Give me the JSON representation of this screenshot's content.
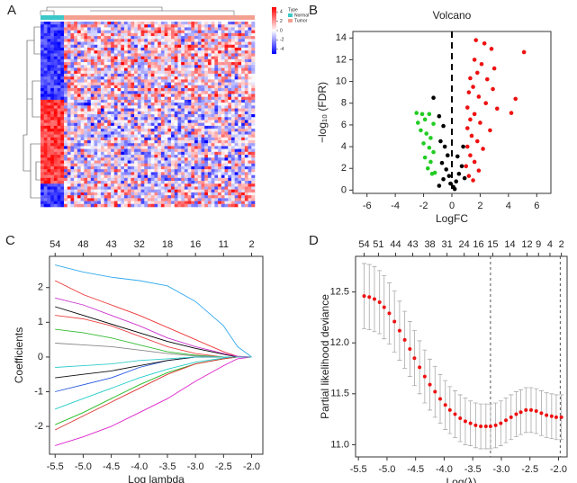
{
  "panel_labels": [
    "A",
    "B",
    "C",
    "D"
  ],
  "chart_data": [
    {
      "type": "heatmap",
      "legend_title": "Type",
      "groups": [
        {
          "name": "Normal",
          "color": "#3cc8c8"
        },
        {
          "name": "Tumor",
          "color": "#f2a090"
        }
      ],
      "colors": [
        "#0000ff",
        "#ffffff",
        "#ff0000"
      ],
      "clim": [
        -5,
        5
      ],
      "colorbar_ticks": [
        4,
        2,
        0,
        -2,
        -4
      ]
    },
    {
      "type": "scatter",
      "title": "Volcano",
      "x_label": "LogFC",
      "y_label": "−log₁₀ (FDR)",
      "xlim": [
        -7,
        7
      ],
      "ylim": [
        -0.3,
        14.6
      ],
      "xticks": [
        -6,
        -4,
        -2,
        0,
        2,
        4,
        6
      ],
      "yticks": [
        0,
        2,
        4,
        6,
        8,
        10,
        12,
        14
      ],
      "vline": 0,
      "series": [
        {
          "color": "#22cc22",
          "x": [
            -2.5,
            -2.1,
            -1.6,
            -2.4,
            -1.9,
            -1.3,
            -2.2,
            -1.8,
            -1.5,
            -2.0,
            -1.6,
            -1.3,
            -1.9,
            -1.5,
            -1.7,
            -1.2,
            -1.4
          ],
          "values": [
            7.1,
            7.0,
            7.0,
            6.2,
            6.5,
            6.1,
            5.5,
            5.2,
            4.8,
            4.3,
            3.9,
            3.5,
            3.0,
            2.6,
            2.0,
            1.6,
            1.5
          ]
        },
        {
          "color": "#000000",
          "x": [
            -1.3,
            -0.9,
            -0.6,
            -0.8,
            -0.5,
            -0.3,
            -0.7,
            -0.4,
            -0.2,
            -0.6,
            -0.1,
            0.1,
            0.3,
            0.5,
            0.7,
            0.4,
            0.8,
            -0.9,
            0.2,
            0.9
          ],
          "values": [
            8.5,
            6.8,
            5.9,
            4.5,
            4.0,
            3.2,
            2.5,
            1.9,
            1.3,
            1.0,
            0.6,
            0.3,
            0.8,
            1.5,
            2.2,
            3.1,
            4.0,
            0.4,
            0.1,
            1.1
          ]
        },
        {
          "color": "#ee1111",
          "x": [
            1.7,
            2.3,
            2.8,
            5.1,
            1.6,
            2.1,
            3.0,
            1.8,
            1.3,
            2.5,
            1.5,
            2.9,
            1.2,
            1.9,
            4.5,
            2.4,
            1.1,
            3.2,
            1.6,
            4.2,
            1.3,
            2.0,
            1.1,
            2.7,
            1.4,
            1.8,
            1.1,
            2.2,
            1.3,
            1.6,
            1.0,
            1.9,
            1.2,
            1.5
          ],
          "values": [
            13.8,
            13.5,
            13.0,
            12.7,
            12.0,
            11.6,
            11.2,
            10.8,
            10.3,
            10.2,
            9.5,
            9.3,
            9.0,
            8.6,
            8.4,
            8.0,
            7.6,
            7.5,
            7.0,
            7.1,
            6.5,
            6.2,
            5.7,
            5.5,
            5.0,
            4.5,
            4.0,
            3.8,
            3.2,
            2.6,
            2.2,
            1.8,
            1.3,
            0.9
          ]
        }
      ]
    },
    {
      "type": "line",
      "x_label": "Log lambda",
      "y_label": "Coefficients",
      "xlim": [
        -5.6,
        -1.8
      ],
      "ylim": [
        -2.8,
        2.9
      ],
      "xticks": [
        -5.5,
        {
          "value": -5,
          "label": "-5.0"
        },
        -4.5,
        {
          "value": -4,
          "label": "-4.0"
        },
        -3.5,
        {
          "value": -3,
          "label": "-3.0"
        },
        -2.5,
        {
          "value": -2,
          "label": "-2.0"
        }
      ],
      "yticks": [
        -2,
        -1,
        0,
        1,
        2
      ],
      "top_ticks": [
        {
          "value": -5.5,
          "label": "54"
        },
        {
          "value": -5,
          "label": "48"
        },
        {
          "value": -4.5,
          "label": "43"
        },
        {
          "value": -4,
          "label": "32"
        },
        {
          "value": -3.5,
          "label": "18"
        },
        {
          "value": -3,
          "label": "16"
        },
        {
          "value": -2.5,
          "label": "11"
        },
        {
          "value": -2,
          "label": "2"
        }
      ],
      "x": [
        -5.5,
        -5.0,
        -4.5,
        -4.0,
        -3.5,
        -3.0,
        -2.5,
        -2.25,
        -2.0
      ],
      "series": [
        {
          "color": "#33aaee",
          "values": [
            2.65,
            2.45,
            2.3,
            2.2,
            2.05,
            1.6,
            0.9,
            0.3,
            0
          ]
        },
        {
          "color": "#dd22cc",
          "values": [
            -2.55,
            -2.3,
            -2.0,
            -1.6,
            -1.2,
            -0.7,
            -0.25,
            -0.05,
            0
          ]
        },
        {
          "color": "#ee3333",
          "values": [
            2.2,
            1.8,
            1.5,
            1.2,
            0.85,
            0.5,
            0.15,
            0.02,
            0
          ]
        },
        {
          "color": "#000000",
          "values": [
            1.45,
            1.2,
            0.95,
            0.7,
            0.45,
            0.25,
            0.08,
            0,
            0
          ]
        },
        {
          "color": "#22bb22",
          "values": [
            -1.95,
            -1.6,
            -1.2,
            -0.8,
            -0.45,
            -0.2,
            -0.05,
            0,
            0
          ]
        },
        {
          "color": "#22cccc",
          "values": [
            -1.5,
            -1.2,
            -0.9,
            -0.6,
            -0.35,
            -0.15,
            -0.03,
            0,
            0
          ]
        },
        {
          "color": "#ee4444",
          "values": [
            1.2,
            1.1,
            0.9,
            0.6,
            0.3,
            0.1,
            0,
            0,
            0
          ]
        },
        {
          "color": "#2255dd",
          "values": [
            -1.0,
            -0.8,
            -0.6,
            -0.3,
            -0.1,
            0,
            0,
            0,
            0
          ]
        },
        {
          "color": "#33bb33",
          "values": [
            0.8,
            0.7,
            0.55,
            0.35,
            0.15,
            0.05,
            0,
            0,
            0
          ]
        },
        {
          "color": "#111111",
          "values": [
            -0.6,
            -0.5,
            -0.4,
            -0.25,
            -0.1,
            0,
            0,
            0,
            0
          ]
        },
        {
          "color": "#888888",
          "values": [
            0.4,
            0.35,
            0.3,
            0.2,
            0.1,
            0.03,
            0,
            0,
            0
          ]
        },
        {
          "color": "#dd3333",
          "values": [
            -2.1,
            -1.7,
            -1.3,
            -0.9,
            -0.5,
            -0.2,
            -0.05,
            0,
            0
          ]
        },
        {
          "color": "#cc33cc",
          "values": [
            1.7,
            1.5,
            1.2,
            0.9,
            0.55,
            0.3,
            0.1,
            0.02,
            0
          ]
        },
        {
          "color": "#33cccc",
          "values": [
            -0.3,
            -0.25,
            -0.2,
            -0.1,
            -0.05,
            0,
            0,
            0,
            0
          ]
        }
      ]
    },
    {
      "type": "errorbar",
      "x_label": "Log(λ)",
      "y_label": "Partial likelihood deviance",
      "color": "#ee1111",
      "xlim": [
        -5.55,
        -1.85
      ],
      "ylim": [
        10.88,
        12.85
      ],
      "xticks": [
        -5.5,
        {
          "value": -5,
          "label": "-5.0"
        },
        -4.5,
        {
          "value": -4,
          "label": "-4.0"
        },
        -3.5,
        {
          "value": -3,
          "label": "-3.0"
        },
        -2.5,
        {
          "value": -2,
          "label": "-2.0"
        }
      ],
      "yticks": [
        {
          "value": 11,
          "label": "11.0"
        },
        11.5,
        {
          "value": 12,
          "label": "12.0"
        },
        12.5
      ],
      "top_ticks": [
        {
          "value": -5.4,
          "label": "54"
        },
        {
          "value": -5.15,
          "label": "51"
        },
        {
          "value": -4.85,
          "label": "44"
        },
        {
          "value": -4.55,
          "label": "43"
        },
        {
          "value": -4.25,
          "label": "38"
        },
        {
          "value": -3.95,
          "label": "31"
        },
        {
          "value": -3.65,
          "label": "24"
        },
        {
          "value": -3.4,
          "label": "16"
        },
        {
          "value": -3.15,
          "label": "15"
        },
        {
          "value": -2.85,
          "label": "14"
        },
        {
          "value": -2.55,
          "label": "12"
        },
        {
          "value": -2.35,
          "label": "9"
        },
        {
          "value": -2.15,
          "label": "4"
        },
        {
          "value": -1.95,
          "label": "2"
        }
      ],
      "vlines": [
        -3.19,
        -1.97
      ],
      "x": [
        -5.4,
        -5.31,
        -5.22,
        -5.13,
        -5.05,
        -4.96,
        -4.87,
        -4.78,
        -4.69,
        -4.6,
        -4.52,
        -4.43,
        -4.34,
        -4.25,
        -4.16,
        -4.07,
        -3.98,
        -3.9,
        -3.81,
        -3.72,
        -3.63,
        -3.54,
        -3.45,
        -3.36,
        -3.27,
        -3.19,
        -3.1,
        -3.01,
        -2.92,
        -2.83,
        -2.74,
        -2.66,
        -2.57,
        -2.48,
        -2.39,
        -2.3,
        -2.21,
        -2.12,
        -2.04,
        -1.95
      ],
      "values": [
        12.46,
        12.45,
        12.43,
        12.4,
        12.35,
        12.29,
        12.21,
        12.12,
        12.03,
        11.94,
        11.85,
        11.76,
        11.67,
        11.59,
        11.52,
        11.45,
        11.39,
        11.34,
        11.3,
        11.26,
        11.23,
        11.21,
        11.19,
        11.18,
        11.18,
        11.18,
        11.19,
        11.21,
        11.24,
        11.27,
        11.3,
        11.32,
        11.34,
        11.34,
        11.33,
        11.31,
        11.29,
        11.28,
        11.27,
        11.27
      ],
      "errors": [
        0.32,
        0.32,
        0.32,
        0.31,
        0.31,
        0.3,
        0.3,
        0.29,
        0.28,
        0.27,
        0.27,
        0.26,
        0.26,
        0.25,
        0.25,
        0.24,
        0.24,
        0.23,
        0.23,
        0.23,
        0.23,
        0.22,
        0.22,
        0.22,
        0.22,
        0.22,
        0.22,
        0.22,
        0.22,
        0.22,
        0.22,
        0.22,
        0.22,
        0.22,
        0.22,
        0.22,
        0.22,
        0.22,
        0.22,
        0.22
      ]
    }
  ]
}
